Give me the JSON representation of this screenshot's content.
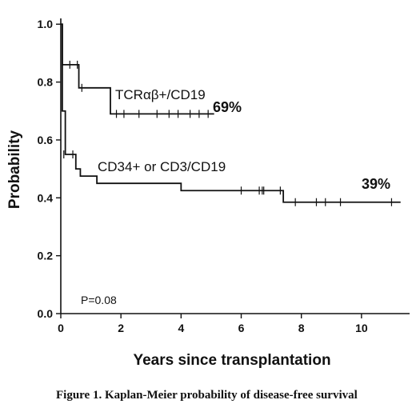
{
  "chart_data": {
    "type": "line",
    "step": true,
    "title": "",
    "caption": "Figure 1. Kaplan-Meier probability of disease-free survival",
    "xlabel": "Years since transplantation",
    "ylabel": "Probability",
    "xlim": [
      0,
      11.6
    ],
    "ylim": [
      0,
      1.02
    ],
    "xticks": [
      0,
      2,
      4,
      6,
      8,
      10
    ],
    "xtick_labels": [
      "0",
      "2",
      "4",
      "6",
      "8",
      "10"
    ],
    "yticks": [
      0,
      0.2,
      0.4,
      0.6,
      0.8,
      1.0
    ],
    "ytick_labels": [
      "0.0",
      "0.2",
      "0.4",
      "0.6",
      "0.8",
      "1.0"
    ],
    "grid": false,
    "series": [
      {
        "name": "TCRαβ+/CD19",
        "end_label": "69%",
        "color": "#111111",
        "steps": [
          [
            0,
            1.0
          ],
          [
            0.05,
            0.86
          ],
          [
            0.6,
            0.86
          ],
          [
            0.6,
            0.78
          ],
          [
            1.65,
            0.78
          ],
          [
            1.65,
            0.69
          ],
          [
            5.1,
            0.69
          ]
        ],
        "censored": [
          [
            0.3,
            0.86
          ],
          [
            0.55,
            0.86
          ],
          [
            0.7,
            0.78
          ],
          [
            1.85,
            0.69
          ],
          [
            2.1,
            0.69
          ],
          [
            2.6,
            0.69
          ],
          [
            3.2,
            0.69
          ],
          [
            3.6,
            0.69
          ],
          [
            3.9,
            0.69
          ],
          [
            4.3,
            0.69
          ],
          [
            4.6,
            0.69
          ],
          [
            4.9,
            0.69
          ]
        ]
      },
      {
        "name": "CD34+ or CD3/CD19",
        "end_label": "39%",
        "color": "#111111",
        "steps": [
          [
            0,
            1.0
          ],
          [
            0.05,
            0.7
          ],
          [
            0.15,
            0.55
          ],
          [
            0.5,
            0.55
          ],
          [
            0.5,
            0.5
          ],
          [
            0.65,
            0.5
          ],
          [
            0.65,
            0.475
          ],
          [
            1.2,
            0.475
          ],
          [
            1.2,
            0.45
          ],
          [
            4.0,
            0.45
          ],
          [
            4.0,
            0.425
          ],
          [
            7.4,
            0.425
          ],
          [
            7.4,
            0.385
          ],
          [
            11.3,
            0.385
          ]
        ],
        "censored": [
          [
            0.1,
            0.55
          ],
          [
            0.4,
            0.55
          ],
          [
            6.0,
            0.425
          ],
          [
            6.6,
            0.425
          ],
          [
            6.7,
            0.425
          ],
          [
            6.75,
            0.425
          ],
          [
            7.3,
            0.425
          ],
          [
            7.8,
            0.385
          ],
          [
            8.5,
            0.385
          ],
          [
            8.8,
            0.385
          ],
          [
            9.3,
            0.385
          ],
          [
            11.0,
            0.385
          ]
        ]
      }
    ],
    "annotations": {
      "pvalue": "P=0.08"
    }
  }
}
